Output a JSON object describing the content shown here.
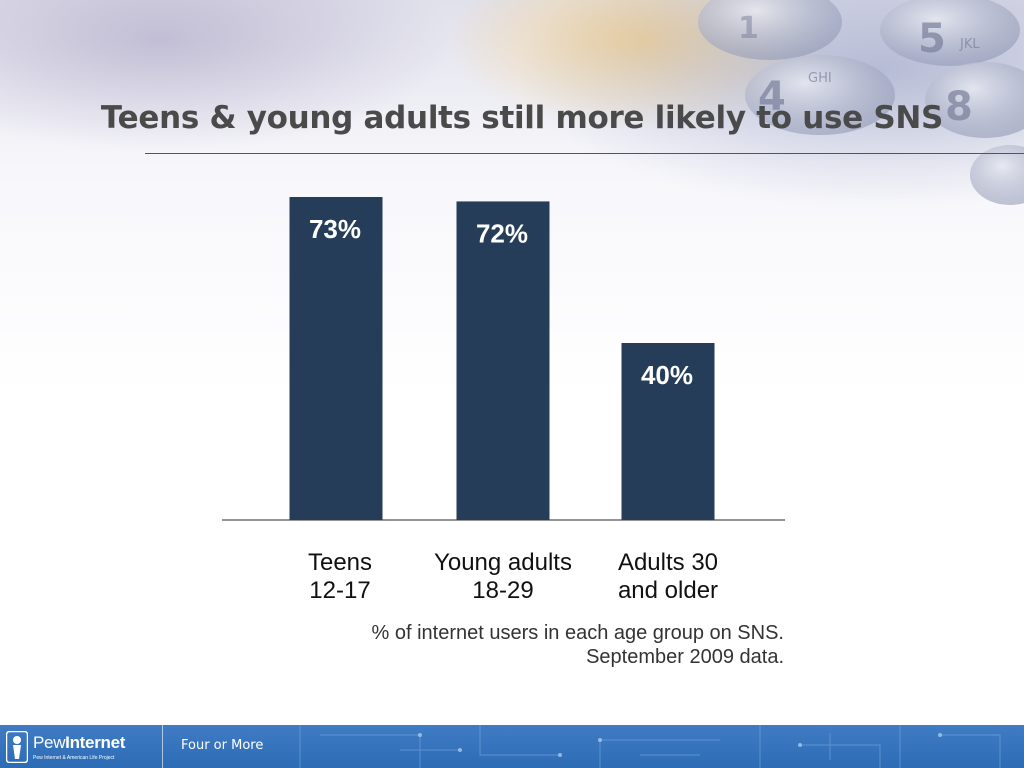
{
  "slide": {
    "title": "Teens & young adults still more likely to use SNS"
  },
  "chart_data": {
    "type": "bar",
    "title": "",
    "categories": [
      [
        "Teens",
        "12-17"
      ],
      [
        "Young adults",
        "18-29"
      ],
      [
        "Adults 30",
        "and older"
      ]
    ],
    "values": [
      73,
      72,
      40
    ],
    "value_labels": [
      "73%",
      "72%",
      "40%"
    ],
    "ylim": [
      0,
      73
    ],
    "bar_color": "#263d5a",
    "label_color": "#ffffff",
    "grid": false,
    "legend": "none"
  },
  "caption": {
    "line1": "% of internet users in each age group on SNS.",
    "line2": "September 2009 data."
  },
  "footer": {
    "logo_text_regular": "Pew",
    "logo_text_bold": "Internet",
    "logo_subtext": "Pew Internet & American Life Project",
    "label": "Four or More",
    "color": "#2f6db6"
  },
  "icons": {
    "logo": "keyhole-person-icon",
    "background": "phone-keypad-photo"
  }
}
